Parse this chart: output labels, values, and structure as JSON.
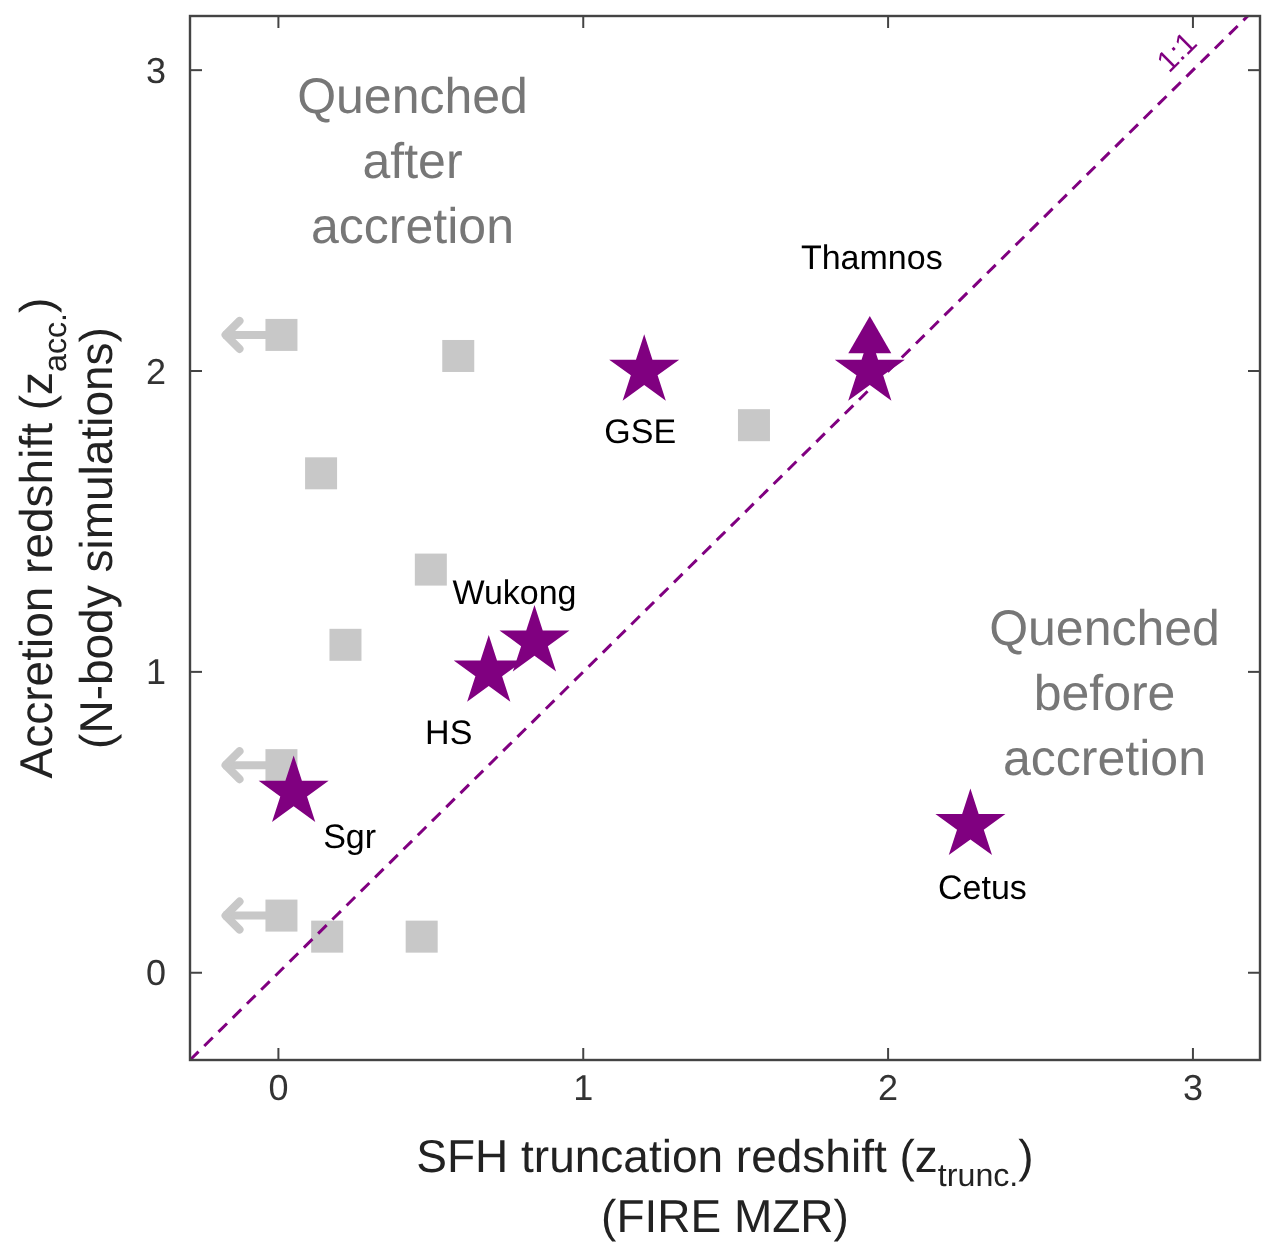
{
  "chart_data": {
    "type": "scatter",
    "xlabel": "SFH truncation redshift (z$_{trunc.}$)\n(FIRE MZR)",
    "ylabel": "Accretion redshift (z$_{acc.}$)\n(N-body simulations)",
    "xlim": [
      -0.29,
      3.22
    ],
    "ylim": [
      -0.29,
      3.18
    ],
    "xticks": [
      0,
      1,
      2,
      3
    ],
    "yticks": [
      0,
      1,
      2,
      3
    ],
    "grid": false,
    "series": [
      {
        "marker": "square",
        "color": "#c8c8c8",
        "x": [
          0.59,
          0.14,
          0.5,
          0.22,
          0.16,
          0.47,
          1.56
        ],
        "values": [
          2.05,
          1.66,
          1.34,
          1.09,
          0.12,
          0.12,
          1.82
        ]
      },
      {
        "marker": "square",
        "color": "#c8c8c8",
        "x": [
          0.01,
          0.01,
          0.01
        ],
        "values": [
          2.12,
          0.69,
          0.19
        ],
        "xerrors": [
          [
            -0.18,
            0.01
          ],
          [
            -0.18,
            0.01
          ],
          [
            -0.18,
            0.01
          ]
        ]
      },
      {
        "marker": "star",
        "color": "#800080",
        "x": [
          0.05,
          0.69,
          0.84,
          1.2,
          1.94,
          2.27
        ],
        "values": [
          0.6,
          1.0,
          1.1,
          2.0,
          2.0,
          0.49
        ]
      },
      {
        "marker": "triangle",
        "color": "#800080",
        "x": [
          1.94
        ],
        "values": [
          2.1
        ]
      },
      {
        "type": "line",
        "name": "1:1",
        "line_style": "dashed",
        "marker": "none",
        "color": "#800080",
        "x": [
          -0.29,
          3.18
        ],
        "values": [
          -0.29,
          3.18
        ]
      }
    ],
    "annotations": [
      {
        "text": "Sgr",
        "x": 0.05,
        "y": 0.6
      },
      {
        "text": "HS",
        "x": 0.69,
        "y": 1.0
      },
      {
        "text": "Wukong",
        "x": 0.84,
        "y": 1.1
      },
      {
        "text": "GSE",
        "x": 1.2,
        "y": 2.0
      },
      {
        "text": "Thamnos",
        "x": 1.94,
        "y": 2.1
      },
      {
        "text": "Cetus",
        "x": 2.27,
        "y": 0.49
      },
      "Quenched after accretion",
      "Quenched before accretion"
    ]
  }
}
